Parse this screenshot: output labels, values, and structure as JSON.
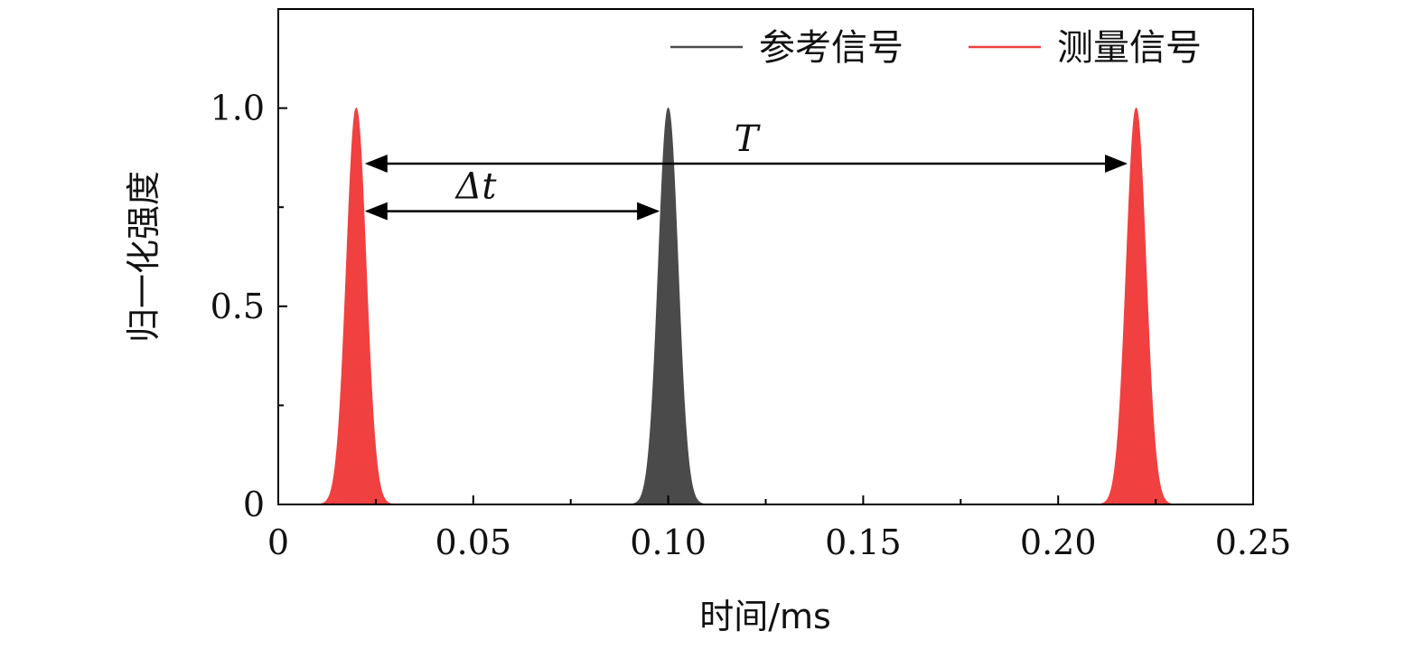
{
  "chart_data": {
    "type": "area",
    "xlabel": "时间/ms",
    "ylabel": "归一化强度",
    "xlim": [
      0,
      0.25
    ],
    "ylim": [
      0,
      1.25
    ],
    "x_ticks": [
      0,
      0.05,
      0.1,
      0.15,
      0.2,
      0.25
    ],
    "x_tick_labels": [
      "0",
      "0.05",
      "0.10",
      "0.15",
      "0.20",
      "0.25"
    ],
    "y_ticks": [
      0,
      0.5,
      1.0
    ],
    "y_tick_labels": [
      "0",
      "0.5",
      "1.0"
    ],
    "x_minor_ticks": [
      0.025,
      0.075,
      0.125,
      0.175,
      0.225
    ],
    "y_minor_ticks": [
      0.25,
      0.75
    ],
    "grid": false,
    "legend_position": "top-right",
    "series": [
      {
        "name": "参考信号",
        "color": "#4a4a4a",
        "peaks": [
          0.1
        ],
        "amplitude": 1.0,
        "width": 0.0025
      },
      {
        "name": "测量信号",
        "color": "#f04040",
        "peaks": [
          0.02,
          0.22
        ],
        "amplitude": 1.0,
        "width": 0.0025
      }
    ],
    "annotations": [
      {
        "label": "Δt",
        "from": 0.02,
        "to": 0.1,
        "y": 0.74
      },
      {
        "label": "T",
        "from": 0.02,
        "to": 0.22,
        "y": 0.86
      }
    ]
  }
}
